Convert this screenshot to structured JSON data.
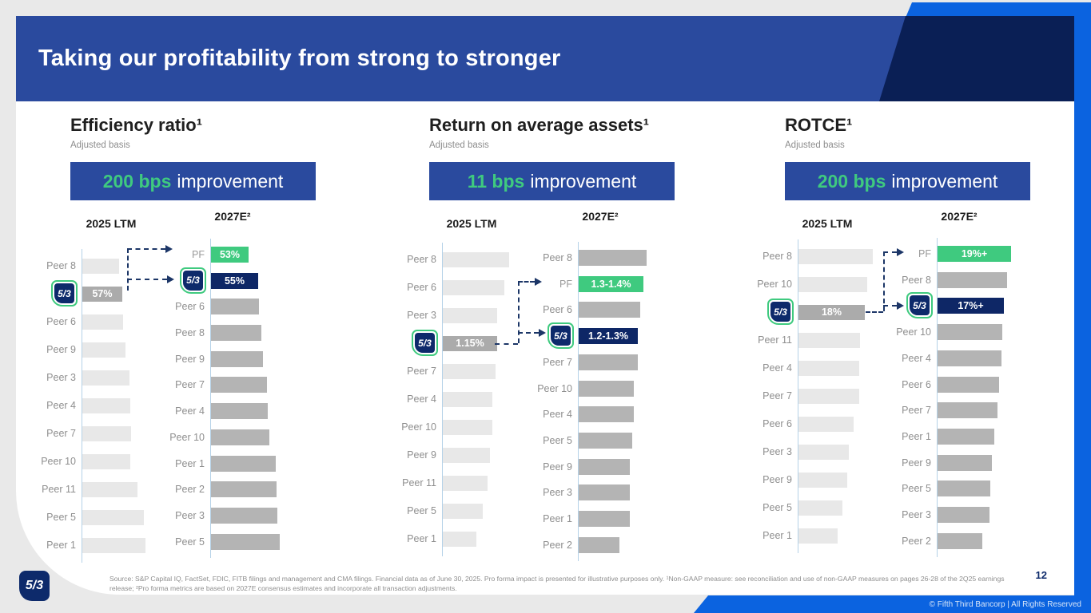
{
  "slide": {
    "title": "Taking our profitability from strong to stronger",
    "page_number": "12",
    "copyright": "© Fifth Third Bancorp | All Rights Reserved",
    "logo_text": "5/3",
    "source_note": "Source: S&P Capital IQ, FactSet, FDIC, FITB filings and management and CMA filings. Financial data as of June 30, 2025. Pro forma impact is presented for illustrative purposes only. ¹Non-GAAP measure: see reconciliation and use of non-GAAP measures on pages 26-28 of the 2Q25 earnings release; ²Pro forma metrics are based on 2027E consensus estimates and incorporate all transaction adjustments."
  },
  "colors": {
    "brand_blue": "#2a4a9e",
    "navy": "#0a1f55",
    "bright_blue": "#0b63e0",
    "green": "#3fca7f",
    "bar_peer_ltm": "#e8e8e8",
    "bar_fitb_ltm": "#ababab",
    "bar_peer_2027": "#b4b4b4",
    "bar_fitb_2027": "#0e2766",
    "bar_pf": "#3fca7f"
  },
  "chart_data": [
    {
      "type": "bar",
      "orientation": "horizontal",
      "title": "Efficiency ratio¹",
      "subtitle": "Adjusted basis",
      "banner": {
        "highlight": "200 bps",
        "text": "improvement"
      },
      "columns": [
        {
          "header": "2025 LTM",
          "rows": [
            {
              "label": "Peer 8",
              "len": 46
            },
            {
              "label": "5/3",
              "fitb": true,
              "len": 50,
              "value": "57%"
            },
            {
              "label": "Peer 6",
              "len": 51
            },
            {
              "label": "Peer 9",
              "len": 54
            },
            {
              "label": "Peer 3",
              "len": 59
            },
            {
              "label": "Peer 4",
              "len": 60
            },
            {
              "label": "Peer 7",
              "len": 61
            },
            {
              "label": "Peer 10",
              "len": 60
            },
            {
              "label": "Peer 11",
              "len": 69
            },
            {
              "label": "Peer 5",
              "len": 77
            },
            {
              "label": "Peer 1",
              "len": 79
            }
          ]
        },
        {
          "header": "2027E²",
          "rows": [
            {
              "label": "PF",
              "pf": true,
              "len": 47,
              "value": "53%"
            },
            {
              "label": "5/3",
              "fitb": true,
              "len": 59,
              "value": "55%"
            },
            {
              "label": "Peer 6",
              "len": 60
            },
            {
              "label": "Peer 8",
              "len": 63
            },
            {
              "label": "Peer 9",
              "len": 65
            },
            {
              "label": "Peer 7",
              "len": 70
            },
            {
              "label": "Peer 4",
              "len": 71
            },
            {
              "label": "Peer 10",
              "len": 73
            },
            {
              "label": "Peer 1",
              "len": 81
            },
            {
              "label": "Peer 2",
              "len": 82
            },
            {
              "label": "Peer 3",
              "len": 83
            },
            {
              "label": "Peer 5",
              "len": 86
            }
          ]
        }
      ]
    },
    {
      "type": "bar",
      "orientation": "horizontal",
      "title": "Return on average assets¹",
      "subtitle": "Adjusted basis",
      "banner": {
        "highlight": "11 bps",
        "text": "improvement"
      },
      "columns": [
        {
          "header": "2025 LTM",
          "rows": [
            {
              "label": "Peer 8",
              "len": 83
            },
            {
              "label": "Peer 6",
              "len": 77
            },
            {
              "label": "Peer 3",
              "len": 68
            },
            {
              "label": "5/3",
              "fitb": true,
              "len": 68,
              "value": "1.15%"
            },
            {
              "label": "Peer 7",
              "len": 66
            },
            {
              "label": "Peer 4",
              "len": 62
            },
            {
              "label": "Peer 10",
              "len": 62
            },
            {
              "label": "Peer 9",
              "len": 59
            },
            {
              "label": "Peer 11",
              "len": 56
            },
            {
              "label": "Peer 5",
              "len": 50
            },
            {
              "label": "Peer 1",
              "len": 42
            }
          ]
        },
        {
          "header": "2027E²",
          "rows": [
            {
              "label": "Peer 8",
              "len": 85
            },
            {
              "label": "PF",
              "pf": true,
              "len": 81,
              "value": "1.3-1.4%"
            },
            {
              "label": "Peer 6",
              "len": 77
            },
            {
              "label": "5/3",
              "fitb": true,
              "len": 74,
              "value": "1.2-1.3%"
            },
            {
              "label": "Peer 7",
              "len": 74
            },
            {
              "label": "Peer 10",
              "len": 69
            },
            {
              "label": "Peer 4",
              "len": 69
            },
            {
              "label": "Peer 5",
              "len": 67
            },
            {
              "label": "Peer 9",
              "len": 64
            },
            {
              "label": "Peer 3",
              "len": 64
            },
            {
              "label": "Peer 1",
              "len": 64
            },
            {
              "label": "Peer 2",
              "len": 51
            }
          ]
        }
      ]
    },
    {
      "type": "bar",
      "orientation": "horizontal",
      "title": "ROTCE¹",
      "subtitle": "Adjusted basis",
      "banner": {
        "highlight": "200 bps",
        "text": "improvement"
      },
      "columns": [
        {
          "header": "2025 LTM",
          "rows": [
            {
              "label": "Peer 8",
              "len": 93
            },
            {
              "label": "Peer 10",
              "len": 86
            },
            {
              "label": "5/3",
              "fitb": true,
              "len": 83,
              "value": "18%"
            },
            {
              "label": "Peer 11",
              "len": 77
            },
            {
              "label": "Peer 4",
              "len": 76
            },
            {
              "label": "Peer 7",
              "len": 76
            },
            {
              "label": "Peer 6",
              "len": 69
            },
            {
              "label": "Peer 3",
              "len": 63
            },
            {
              "label": "Peer 9",
              "len": 61
            },
            {
              "label": "Peer 5",
              "len": 55
            },
            {
              "label": "Peer 1",
              "len": 49
            }
          ]
        },
        {
          "header": "2027E²",
          "rows": [
            {
              "label": "PF",
              "pf": true,
              "len": 92,
              "value": "19%+"
            },
            {
              "label": "Peer 8",
              "len": 87
            },
            {
              "label": "5/3",
              "fitb": true,
              "len": 83,
              "value": "17%+"
            },
            {
              "label": "Peer 10",
              "len": 81
            },
            {
              "label": "Peer 4",
              "len": 80
            },
            {
              "label": "Peer 6",
              "len": 77
            },
            {
              "label": "Peer 7",
              "len": 75
            },
            {
              "label": "Peer 1",
              "len": 71
            },
            {
              "label": "Peer 9",
              "len": 68
            },
            {
              "label": "Peer 5",
              "len": 66
            },
            {
              "label": "Peer 3",
              "len": 65
            },
            {
              "label": "Peer 2",
              "len": 56
            }
          ]
        }
      ]
    }
  ]
}
